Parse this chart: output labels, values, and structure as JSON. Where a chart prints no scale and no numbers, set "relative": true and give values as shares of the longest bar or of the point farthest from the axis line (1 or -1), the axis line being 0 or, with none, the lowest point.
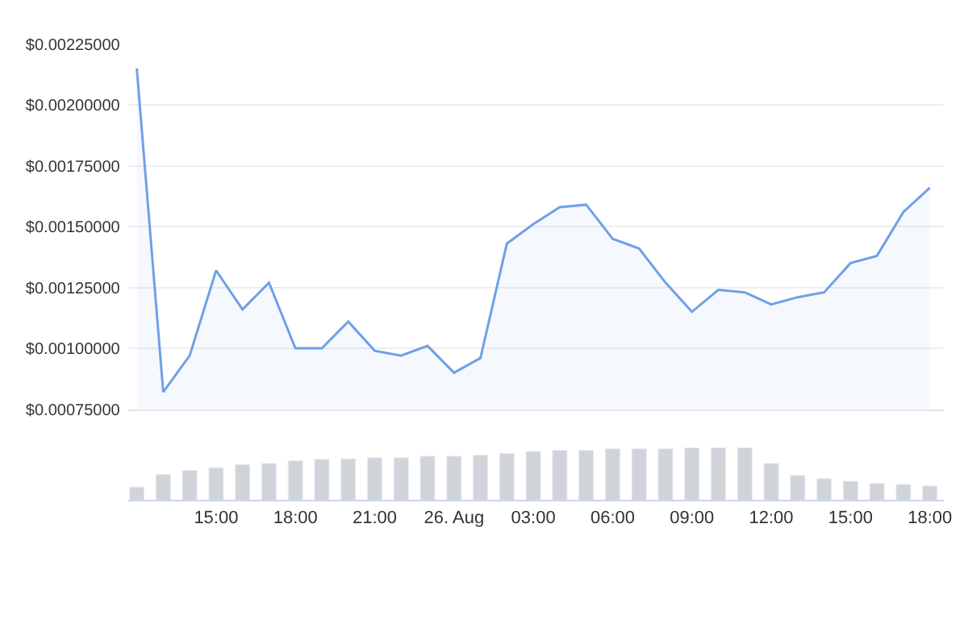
{
  "chart_data": [
    {
      "type": "area",
      "x": [
        "--08-25T12:00",
        "--08-25T13:00",
        "--08-25T14:00",
        "--08-25T15:00",
        "--08-25T16:00",
        "--08-25T17:00",
        "--08-25T18:00",
        "--08-25T19:00",
        "--08-25T20:00",
        "--08-25T21:00",
        "--08-25T22:00",
        "--08-25T23:00",
        "--08-26T00:00",
        "--08-26T01:00",
        "--08-26T02:00",
        "--08-26T03:00",
        "--08-26T04:00",
        "--08-26T05:00",
        "--08-26T06:00",
        "--08-26T07:00",
        "--08-26T08:00",
        "--08-26T09:00",
        "--08-26T10:00",
        "--08-26T11:00",
        "--08-26T12:00",
        "--08-26T13:00",
        "--08-26T14:00",
        "--08-26T15:00",
        "--08-26T16:00",
        "--08-26T17:00",
        "--08-26T18:00"
      ],
      "series": [
        {
          "color": "#6fa0e8",
          "values": [
            0.00215,
            0.00082,
            0.00097,
            0.00132,
            0.00116,
            0.00127,
            0.001,
            0.001,
            0.00111,
            0.00099,
            0.00097,
            0.00101,
            0.0009,
            0.00096,
            0.00143,
            0.00151,
            0.00158,
            0.00159,
            0.00145,
            0.00141,
            0.00127,
            0.00115,
            0.00124,
            0.00123,
            0.00118,
            0.00121,
            0.00123,
            0.00135,
            0.00138,
            0.00156,
            0.00166
          ]
        }
      ],
      "xlim": [
        "--08-25T11:40",
        "--08-26T18:32"
      ],
      "ylim": [
        0.00075,
        0.00225
      ],
      "yticks": [
        {
          "value": 0.00075,
          "label": "$0.00075000"
        },
        {
          "value": 0.001,
          "label": "$0.00100000"
        },
        {
          "value": 0.00125,
          "label": "$0.00125000"
        },
        {
          "value": 0.0015,
          "label": "$0.00150000"
        },
        {
          "value": 0.00175,
          "label": "$0.00175000"
        },
        {
          "value": 0.002,
          "label": "$0.00200000"
        },
        {
          "value": 0.00225,
          "label": "$0.00225000"
        }
      ],
      "tick_labels": "y",
      "grid": "y",
      "marker": "none",
      "line_style": "solid"
    },
    {
      "type": "bar",
      "relative": true,
      "x": [
        "--08-25T12:00",
        "--08-25T13:00",
        "--08-25T14:00",
        "--08-25T15:00",
        "--08-25T16:00",
        "--08-25T17:00",
        "--08-25T18:00",
        "--08-25T19:00",
        "--08-25T20:00",
        "--08-25T21:00",
        "--08-25T22:00",
        "--08-25T23:00",
        "--08-26T00:00",
        "--08-26T01:00",
        "--08-26T02:00",
        "--08-26T03:00",
        "--08-26T04:00",
        "--08-26T05:00",
        "--08-26T06:00",
        "--08-26T07:00",
        "--08-26T08:00",
        "--08-26T09:00",
        "--08-26T10:00",
        "--08-26T11:00",
        "--08-26T12:00",
        "--08-26T13:00",
        "--08-26T14:00",
        "--08-26T15:00",
        "--08-26T16:00",
        "--08-26T17:00",
        "--08-26T18:00"
      ],
      "series": [
        {
          "color": "#d0d3d8",
          "values": [
            0.25,
            0.49,
            0.57,
            0.62,
            0.68,
            0.7,
            0.75,
            0.78,
            0.79,
            0.81,
            0.81,
            0.84,
            0.84,
            0.86,
            0.89,
            0.93,
            0.95,
            0.95,
            0.98,
            0.98,
            0.98,
            1,
            1,
            1,
            0.7,
            0.47,
            0.41,
            0.36,
            0.32,
            0.3,
            0.27
          ]
        }
      ],
      "xlim": [
        "--08-25T11:40",
        "--08-26T18:32"
      ],
      "xticks": [
        {
          "value": "--08-25T15:00",
          "label": "15:00"
        },
        {
          "value": "--08-25T18:00",
          "label": "18:00"
        },
        {
          "value": "--08-25T21:00",
          "label": "21:00"
        },
        {
          "value": "--08-26T00:00",
          "label": "26. Aug"
        },
        {
          "value": "--08-26T03:00",
          "label": "03:00"
        },
        {
          "value": "--08-26T06:00",
          "label": "06:00"
        },
        {
          "value": "--08-26T09:00",
          "label": "09:00"
        },
        {
          "value": "--08-26T12:00",
          "label": "12:00"
        },
        {
          "value": "--08-26T15:00",
          "label": "15:00"
        },
        {
          "value": "--08-26T18:00",
          "label": "18:00"
        }
      ],
      "tick_labels": "x",
      "grid": false
    }
  ]
}
